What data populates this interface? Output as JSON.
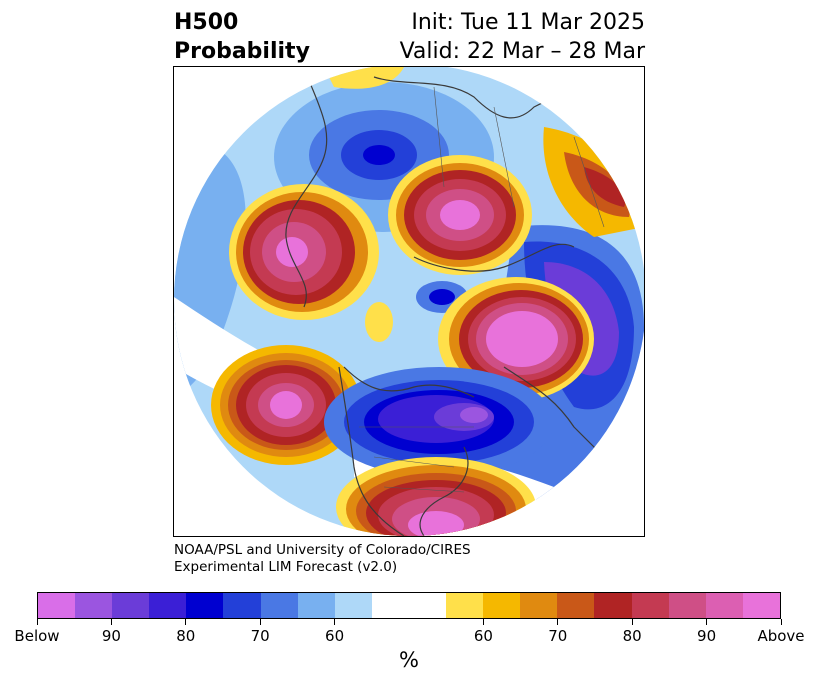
{
  "title": {
    "left_line1": "H500",
    "left_line2": "Probability",
    "init": "Init: Tue 11 Mar 2025",
    "valid": "Valid: 22 Mar – 28 Mar"
  },
  "credit": {
    "line1": "NOAA/PSL and University of Colorado/CIRES",
    "line2": "Experimental LIM Forecast (v2.0)"
  },
  "colorbar": {
    "colors": [
      "#d96ee8",
      "#9b55e0",
      "#6b3cd8",
      "#3b1fd6",
      "#0000d0",
      "#2340d8",
      "#4a78e4",
      "#78b0f0",
      "#aed8f8",
      "#ffffff",
      "#ffe04a",
      "#f5b800",
      "#e08a10",
      "#c95818",
      "#b02424",
      "#c43a52",
      "#cf4f86",
      "#dc5fb2",
      "#e872da"
    ],
    "tick_labels": [
      "Below",
      "90",
      "80",
      "70",
      "60",
      "60",
      "70",
      "80",
      "90",
      "Above"
    ],
    "unit_label": "%"
  },
  "map": {
    "projection": "north-polar-stereographic",
    "features": [
      "coastlines",
      "country-borders",
      "us-state-borders"
    ]
  }
}
